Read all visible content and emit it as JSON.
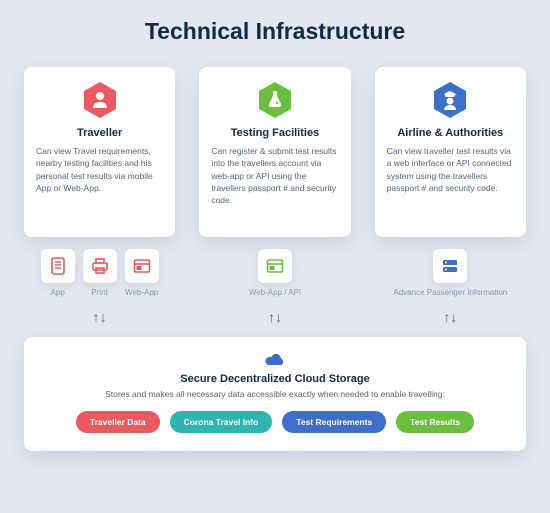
{
  "title": "Technical Infrastructure",
  "background_color": "#e3e7f0",
  "columns": [
    {
      "title": "Traveller",
      "description": "Can view Travel requirements, nearby testing facilities and his personal test results via mobile App or Web-App.",
      "icon": "person-icon",
      "icon_color": "#e85a5f",
      "subitems": [
        {
          "icon": "app-icon",
          "color": "#e85a5f",
          "label": "App"
        },
        {
          "icon": "print-icon",
          "color": "#e85a5f",
          "label": "Print"
        },
        {
          "icon": "webapp-icon",
          "color": "#e85a5f",
          "label": "Web-App"
        }
      ]
    },
    {
      "title": "Testing Facilities",
      "description": "Can register & submit test results into the travellers account via web-app or API using the travellers passport # and security code.",
      "icon": "flask-icon",
      "icon_color": "#6bbf3f",
      "subitems": [
        {
          "icon": "webapp-icon",
          "color": "#6bbf3f",
          "label": "Web-App / API"
        }
      ]
    },
    {
      "title": "Airline & Authorities",
      "description": "Can view traveller test results via a web interface or API connected system using the travellers passport # and security code.",
      "icon": "officer-icon",
      "icon_color": "#3d6fc8",
      "subitems": [
        {
          "icon": "server-icon",
          "color": "#3d6fc8",
          "label": "Advance Passenger Information"
        }
      ]
    }
  ],
  "storage": {
    "title": "Secure Decentralized Cloud Storage",
    "subtitle": "Stores and makes all necessary data accessible exactly when needed to enable travelling:",
    "icon_color": "#3d6fc8",
    "pills": [
      {
        "label": "Traveller Data",
        "color": "#e85a5f"
      },
      {
        "label": "Corona Travel Info",
        "color": "#2fb5b0"
      },
      {
        "label": "Test Requirements",
        "color": "#3d6fc8"
      },
      {
        "label": "Test Results",
        "color": "#6bbf3f"
      }
    ]
  }
}
